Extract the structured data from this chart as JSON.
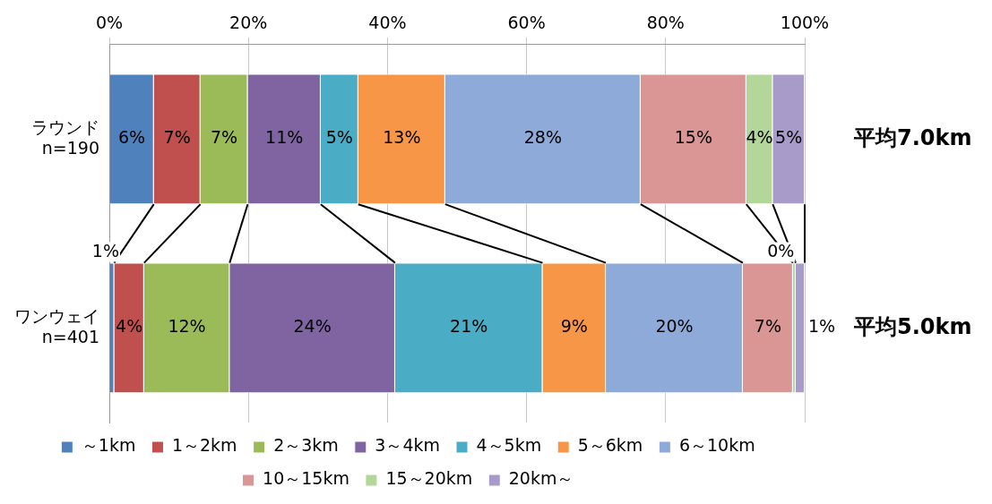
{
  "chart_data": {
    "type": "bar",
    "orientation": "horizontal",
    "stacked": true,
    "categories": [
      "ラウンド\nn=190",
      "ワンウェイ\nn=401"
    ],
    "xlim": [
      0,
      100
    ],
    "xticks": [
      {
        "value": 0,
        "label": "0%"
      },
      {
        "value": 20,
        "label": "20%"
      },
      {
        "value": 40,
        "label": "40%"
      },
      {
        "value": 60,
        "label": "60%"
      },
      {
        "value": 80,
        "label": "80%"
      },
      {
        "value": 100,
        "label": "100%"
      }
    ],
    "grid": "x",
    "legend": "bottom",
    "series": [
      {
        "name": "～1km",
        "color": "#4f81bd",
        "values": [
          6.4,
          0.7
        ],
        "value_labels": [
          "6%",
          "1%"
        ]
      },
      {
        "name": "1～2km",
        "color": "#c0504d",
        "values": [
          6.7,
          4.3
        ],
        "value_labels": [
          "7%",
          "4%"
        ]
      },
      {
        "name": "2～3km",
        "color": "#9bbb59",
        "values": [
          6.8,
          12.3
        ],
        "value_labels": [
          "7%",
          "12%"
        ]
      },
      {
        "name": "3～4km",
        "color": "#8064a2",
        "values": [
          10.5,
          23.8
        ],
        "value_labels": [
          "11%",
          "24%"
        ]
      },
      {
        "name": "4～5km",
        "color": "#4bacc6",
        "values": [
          5.4,
          21.2
        ],
        "value_labels": [
          "5%",
          "21%"
        ]
      },
      {
        "name": "5～6km",
        "color": "#f79646",
        "values": [
          12.5,
          9.1
        ],
        "value_labels": [
          "13%",
          "9%"
        ]
      },
      {
        "name": "6～10km",
        "color": "#8eaad8",
        "values": [
          28.1,
          19.7
        ],
        "value_labels": [
          "28%",
          "20%"
        ]
      },
      {
        "name": "10～15km",
        "color": "#d99694",
        "values": [
          15.2,
          7.2
        ],
        "value_labels": [
          "15%",
          "7%"
        ]
      },
      {
        "name": "15～20km",
        "color": "#b3d69b",
        "values": [
          3.8,
          0.4
        ],
        "value_labels": [
          "4%",
          "0%"
        ]
      },
      {
        "name": "20km～",
        "color": "#a99bc9",
        "values": [
          4.6,
          1.3
        ],
        "value_labels": [
          "5%",
          "1%"
        ]
      }
    ],
    "annotations": [
      "平均7.0km",
      "平均5.0km"
    ]
  }
}
